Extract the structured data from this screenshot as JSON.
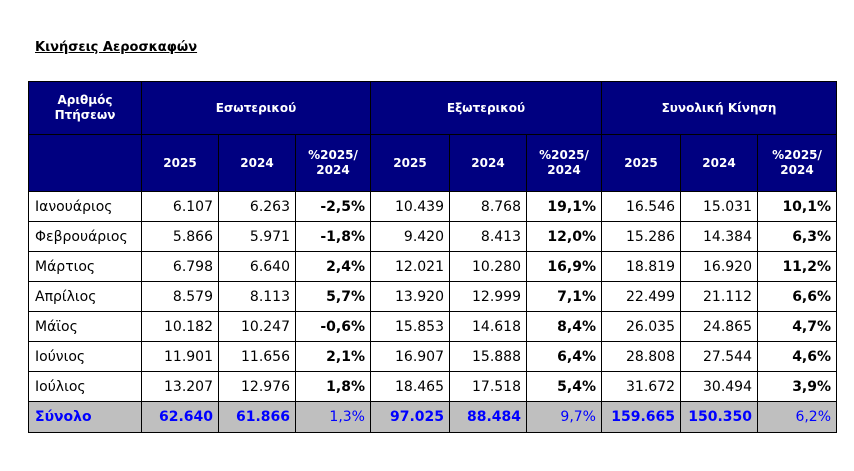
{
  "title": "Κινήσεις Αεροσκαφών",
  "header": {
    "row_label": "Αριθμός Πτήσεων",
    "groups": [
      "Εσωτερικού",
      "Εξωτερικού",
      "Συνολική Κίνηση"
    ],
    "columns": [
      "2025",
      "2024",
      "%2025/ 2024"
    ]
  },
  "rows": [
    {
      "month": "Ιανουάριος",
      "dom_2025": "6.107",
      "dom_2024": "6.263",
      "dom_pct": "-2,5%",
      "int_2025": "10.439",
      "int_2024": "8.768",
      "int_pct": "19,1%",
      "tot_2025": "16.546",
      "tot_2024": "15.031",
      "tot_pct": "10,1%"
    },
    {
      "month": "Φεβρουάριος",
      "dom_2025": "5.866",
      "dom_2024": "5.971",
      "dom_pct": "-1,8%",
      "int_2025": "9.420",
      "int_2024": "8.413",
      "int_pct": "12,0%",
      "tot_2025": "15.286",
      "tot_2024": "14.384",
      "tot_pct": "6,3%"
    },
    {
      "month": "Μάρτιος",
      "dom_2025": "6.798",
      "dom_2024": "6.640",
      "dom_pct": "2,4%",
      "int_2025": "12.021",
      "int_2024": "10.280",
      "int_pct": "16,9%",
      "tot_2025": "18.819",
      "tot_2024": "16.920",
      "tot_pct": "11,2%"
    },
    {
      "month": "Απρίλιος",
      "dom_2025": "8.579",
      "dom_2024": "8.113",
      "dom_pct": "5,7%",
      "int_2025": "13.920",
      "int_2024": "12.999",
      "int_pct": "7,1%",
      "tot_2025": "22.499",
      "tot_2024": "21.112",
      "tot_pct": "6,6%"
    },
    {
      "month": "Μάϊος",
      "dom_2025": "10.182",
      "dom_2024": "10.247",
      "dom_pct": "-0,6%",
      "int_2025": "15.853",
      "int_2024": "14.618",
      "int_pct": "8,4%",
      "tot_2025": "26.035",
      "tot_2024": "24.865",
      "tot_pct": "4,7%"
    },
    {
      "month": "Ιούνιος",
      "dom_2025": "11.901",
      "dom_2024": "11.656",
      "dom_pct": "2,1%",
      "int_2025": "16.907",
      "int_2024": "15.888",
      "int_pct": "6,4%",
      "tot_2025": "28.808",
      "tot_2024": "27.544",
      "tot_pct": "4,6%"
    },
    {
      "month": "Ιούλιος",
      "dom_2025": "13.207",
      "dom_2024": "12.976",
      "dom_pct": "1,8%",
      "int_2025": "18.465",
      "int_2024": "17.518",
      "int_pct": "5,4%",
      "tot_2025": "31.672",
      "tot_2024": "30.494",
      "tot_pct": "3,9%"
    }
  ],
  "total": {
    "month": "Σύνολο",
    "dom_2025": "62.640",
    "dom_2024": "61.866",
    "dom_pct": "1,3%",
    "int_2025": "97.025",
    "int_2024": "88.484",
    "int_pct": "9,7%",
    "tot_2025": "159.665",
    "tot_2024": "150.350",
    "tot_pct": "6,2%"
  },
  "colors": {
    "header_bg": "#000080",
    "header_text": "#ffffff",
    "total_bg": "#bfbfbf",
    "total_text": "#0000ff"
  }
}
